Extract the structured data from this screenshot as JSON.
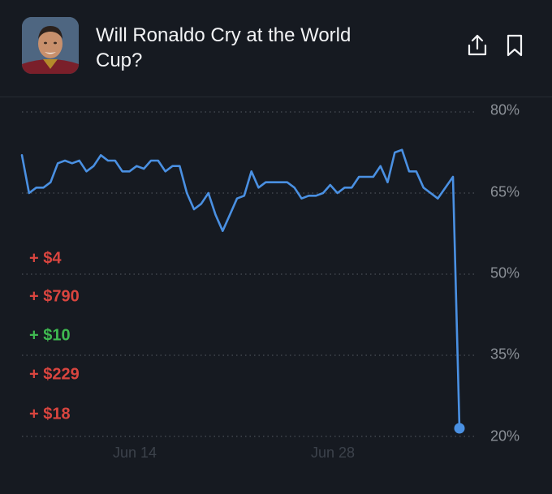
{
  "header": {
    "title": "Will Ronaldo Cry at the World Cup?",
    "share_icon": "share-icon",
    "bookmark_icon": "bookmark-icon"
  },
  "trades": [
    {
      "label": "+ $4",
      "color": "#d9453f"
    },
    {
      "label": "+ $790",
      "color": "#d9453f"
    },
    {
      "label": "+ $10",
      "color": "#3fb950"
    },
    {
      "label": "+ $229",
      "color": "#d9453f"
    },
    {
      "label": "+ $18",
      "color": "#d9453f"
    }
  ],
  "chart_data": {
    "type": "line",
    "y_tick_labels": [
      "80%",
      "65%",
      "50%",
      "35%",
      "20%"
    ],
    "x_tick_labels": [
      "Jun 14",
      "Jun 28"
    ],
    "ylim": [
      20,
      80
    ],
    "line_color": "#4a90e2",
    "grid": "dotted horizontal",
    "series": [
      {
        "values": [
          72,
          65,
          66,
          66,
          67,
          70.5,
          71,
          70.5,
          71,
          69,
          70,
          72,
          71,
          71,
          69,
          69,
          70,
          69.5,
          71,
          71,
          69,
          70,
          70,
          65,
          62,
          63,
          65,
          61,
          58,
          61,
          64,
          64.5,
          69,
          66,
          67,
          67,
          67,
          67,
          66,
          64,
          64.5,
          64.5,
          65,
          66.5,
          65,
          66,
          66,
          68,
          68,
          68,
          70,
          67,
          72.5,
          73,
          69,
          69,
          66,
          65,
          64,
          68,
          21.5
        ]
      }
    ]
  }
}
